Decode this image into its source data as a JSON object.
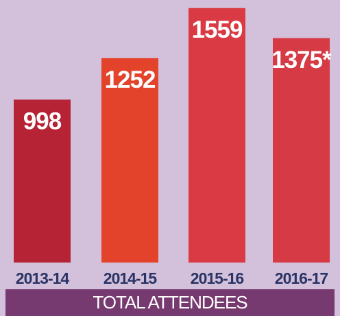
{
  "chart_data": {
    "type": "bar",
    "title": "TOTAL ATTENDEES",
    "categories": [
      "2013-14",
      "2014-15",
      "2015-16",
      "2016-17"
    ],
    "values": [
      998,
      1252,
      1559,
      1375
    ],
    "value_labels": [
      "998",
      "1252",
      "1559",
      "1375*"
    ],
    "colors": [
      "#b52335",
      "#e3432a",
      "#d93a43",
      "#d63a45"
    ],
    "ylim": [
      0,
      1600
    ]
  }
}
